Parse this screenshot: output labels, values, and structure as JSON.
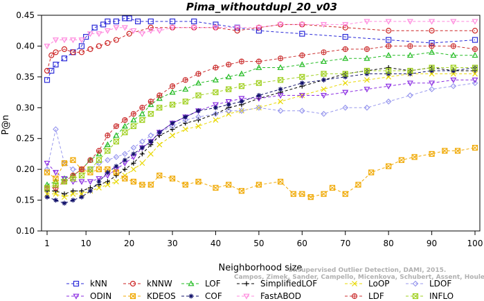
{
  "chart_data": {
    "type": "line",
    "title": "Pima_withoutdupl_20_v03",
    "xlabel": "Neighborhood size",
    "ylabel": "P@n",
    "xlim": [
      1,
      100
    ],
    "ylim": [
      0.1,
      0.45
    ],
    "xticks": [
      1,
      10,
      20,
      30,
      40,
      50,
      60,
      70,
      80,
      90,
      100
    ],
    "yticks": [
      0.1,
      0.15,
      0.2,
      0.25,
      0.3,
      0.35,
      0.4,
      0.45
    ],
    "ytick_labels": [
      "0.10",
      "0.15",
      "0.20",
      "0.25",
      "0.30",
      "0.35",
      "0.40",
      "0.45"
    ],
    "grid": false,
    "legend_position": "bottom",
    "series": [
      {
        "name": "kNN",
        "color": "#2a2ad8",
        "marker": "square",
        "dash": "4,3",
        "x": [
          1,
          2,
          3,
          5,
          7,
          9,
          10,
          12,
          14,
          15,
          17,
          19,
          20,
          22,
          25,
          30,
          35,
          40,
          45,
          50,
          60,
          70,
          80,
          90,
          100
        ],
        "y": [
          0.345,
          0.36,
          0.37,
          0.38,
          0.39,
          0.4,
          0.415,
          0.43,
          0.435,
          0.44,
          0.44,
          0.445,
          0.445,
          0.44,
          0.44,
          0.44,
          0.44,
          0.435,
          0.43,
          0.425,
          0.42,
          0.415,
          0.41,
          0.405,
          0.41
        ]
      },
      {
        "name": "kNNW",
        "color": "#cc2222",
        "marker": "circle",
        "dash": "4,3",
        "x": [
          1,
          2,
          3,
          5,
          7,
          9,
          11,
          13,
          15,
          17,
          20,
          25,
          30,
          35,
          40,
          45,
          50,
          55,
          60,
          70,
          80,
          90,
          100
        ],
        "y": [
          0.36,
          0.385,
          0.39,
          0.395,
          0.39,
          0.39,
          0.395,
          0.4,
          0.405,
          0.41,
          0.42,
          0.43,
          0.43,
          0.43,
          0.43,
          0.425,
          0.43,
          0.435,
          0.435,
          0.43,
          0.425,
          0.425,
          0.425
        ]
      },
      {
        "name": "LOF",
        "color": "#22bb22",
        "marker": "triangle-up",
        "dash": "4,3",
        "x": [
          1,
          3,
          5,
          7,
          9,
          11,
          13,
          15,
          17,
          19,
          21,
          23,
          25,
          27,
          30,
          33,
          36,
          40,
          43,
          46,
          50,
          55,
          60,
          65,
          70,
          75,
          80,
          85,
          90,
          95,
          100
        ],
        "y": [
          0.175,
          0.18,
          0.185,
          0.19,
          0.2,
          0.215,
          0.225,
          0.24,
          0.255,
          0.27,
          0.28,
          0.29,
          0.305,
          0.315,
          0.325,
          0.33,
          0.34,
          0.345,
          0.35,
          0.355,
          0.365,
          0.365,
          0.37,
          0.375,
          0.38,
          0.38,
          0.385,
          0.385,
          0.39,
          0.385,
          0.385
        ]
      },
      {
        "name": "SimplifiedLOF",
        "color": "#000000",
        "marker": "plus",
        "dash": "4,3",
        "x": [
          1,
          3,
          5,
          7,
          9,
          11,
          13,
          15,
          17,
          19,
          21,
          23,
          25,
          27,
          30,
          33,
          36,
          40,
          43,
          46,
          50,
          55,
          60,
          65,
          70,
          75,
          80,
          85,
          90,
          95,
          100
        ],
        "y": [
          0.165,
          0.165,
          0.16,
          0.165,
          0.165,
          0.17,
          0.175,
          0.18,
          0.19,
          0.2,
          0.21,
          0.225,
          0.24,
          0.255,
          0.265,
          0.275,
          0.28,
          0.29,
          0.3,
          0.305,
          0.315,
          0.325,
          0.335,
          0.345,
          0.355,
          0.36,
          0.365,
          0.36,
          0.365,
          0.36,
          0.36
        ]
      },
      {
        "name": "LoOP",
        "color": "#e8d800",
        "marker": "x",
        "dash": "4,3",
        "x": [
          1,
          3,
          5,
          7,
          9,
          11,
          13,
          15,
          17,
          19,
          21,
          23,
          25,
          27,
          30,
          33,
          36,
          40,
          43,
          46,
          50,
          55,
          60,
          65,
          70,
          75,
          80,
          85,
          90,
          95,
          100
        ],
        "y": [
          0.16,
          0.16,
          0.155,
          0.16,
          0.16,
          0.165,
          0.17,
          0.175,
          0.18,
          0.19,
          0.2,
          0.21,
          0.225,
          0.24,
          0.255,
          0.265,
          0.27,
          0.28,
          0.29,
          0.295,
          0.3,
          0.31,
          0.32,
          0.33,
          0.34,
          0.345,
          0.35,
          0.355,
          0.355,
          0.355,
          0.355
        ]
      },
      {
        "name": "LDOF",
        "color": "#9999ee",
        "marker": "diamond",
        "dash": "4,3",
        "x": [
          1,
          3,
          5,
          7,
          9,
          11,
          13,
          15,
          17,
          19,
          21,
          23,
          25,
          27,
          30,
          33,
          36,
          40,
          43,
          46,
          50,
          55,
          60,
          65,
          70,
          75,
          80,
          85,
          90,
          95,
          100
        ],
        "y": [
          0.2,
          0.265,
          0.21,
          0.2,
          0.2,
          0.2,
          0.21,
          0.215,
          0.22,
          0.225,
          0.235,
          0.245,
          0.255,
          0.26,
          0.27,
          0.28,
          0.285,
          0.29,
          0.295,
          0.295,
          0.3,
          0.295,
          0.295,
          0.29,
          0.3,
          0.3,
          0.31,
          0.32,
          0.33,
          0.335,
          0.34
        ]
      },
      {
        "name": "ODIN",
        "color": "#8a2be2",
        "marker": "triangle-down",
        "dash": "4,3",
        "x": [
          1,
          3,
          5,
          7,
          9,
          11,
          13,
          15,
          17,
          19,
          21,
          23,
          25,
          27,
          30,
          33,
          36,
          40,
          43,
          46,
          50,
          55,
          60,
          65,
          70,
          75,
          80,
          85,
          90,
          95,
          100
        ],
        "y": [
          0.21,
          0.195,
          0.185,
          0.18,
          0.18,
          0.18,
          0.185,
          0.19,
          0.2,
          0.21,
          0.22,
          0.235,
          0.245,
          0.26,
          0.275,
          0.285,
          0.295,
          0.305,
          0.31,
          0.315,
          0.315,
          0.32,
          0.32,
          0.32,
          0.325,
          0.33,
          0.335,
          0.34,
          0.34,
          0.345,
          0.345
        ]
      },
      {
        "name": "KDEOS",
        "color": "#f0a800",
        "marker": "square-x",
        "dash": "4,3",
        "x": [
          1,
          3,
          5,
          7,
          9,
          11,
          13,
          15,
          17,
          19,
          21,
          23,
          25,
          27,
          30,
          33,
          36,
          40,
          43,
          46,
          50,
          55,
          58,
          60,
          62,
          65,
          67,
          70,
          73,
          76,
          80,
          83,
          86,
          90,
          93,
          96,
          100
        ],
        "y": [
          0.195,
          0.185,
          0.21,
          0.215,
          0.2,
          0.195,
          0.2,
          0.2,
          0.195,
          0.185,
          0.18,
          0.175,
          0.175,
          0.19,
          0.185,
          0.175,
          0.18,
          0.17,
          0.175,
          0.165,
          0.175,
          0.18,
          0.16,
          0.16,
          0.155,
          0.16,
          0.17,
          0.16,
          0.175,
          0.195,
          0.205,
          0.215,
          0.22,
          0.225,
          0.23,
          0.23,
          0.235
        ]
      },
      {
        "name": "COF",
        "color": "#10106a",
        "marker": "asterisk",
        "dash": "4,3",
        "x": [
          1,
          3,
          5,
          7,
          9,
          11,
          13,
          15,
          17,
          19,
          21,
          23,
          25,
          27,
          30,
          33,
          36,
          40,
          43,
          46,
          50,
          55,
          60,
          65,
          70,
          75,
          80,
          85,
          90,
          95,
          100
        ],
        "y": [
          0.155,
          0.15,
          0.145,
          0.15,
          0.155,
          0.165,
          0.18,
          0.195,
          0.205,
          0.215,
          0.225,
          0.235,
          0.245,
          0.26,
          0.275,
          0.285,
          0.295,
          0.3,
          0.305,
          0.31,
          0.32,
          0.33,
          0.34,
          0.345,
          0.35,
          0.355,
          0.355,
          0.355,
          0.36,
          0.36,
          0.365
        ]
      },
      {
        "name": "FastABOD",
        "color": "#ff88dd",
        "marker": "triangle-down",
        "dash": "4,3",
        "x": [
          1,
          3,
          5,
          7,
          9,
          11,
          13,
          15,
          17,
          19,
          21,
          23,
          25,
          27,
          30,
          35,
          40,
          45,
          50,
          55,
          60,
          65,
          70,
          75,
          80,
          85,
          90,
          95,
          100
        ],
        "y": [
          0.4,
          0.41,
          0.41,
          0.41,
          0.41,
          0.42,
          0.42,
          0.425,
          0.43,
          0.43,
          0.425,
          0.42,
          0.425,
          0.425,
          0.43,
          0.43,
          0.43,
          0.43,
          0.43,
          0.435,
          0.435,
          0.435,
          0.435,
          0.44,
          0.44,
          0.44,
          0.44,
          0.44,
          0.44
        ]
      },
      {
        "name": "LDF",
        "color": "#cc3333",
        "marker": "circle-plus",
        "dash": "4,3",
        "x": [
          1,
          3,
          5,
          7,
          9,
          11,
          13,
          15,
          17,
          19,
          21,
          23,
          25,
          27,
          30,
          33,
          36,
          40,
          43,
          46,
          50,
          55,
          60,
          65,
          70,
          75,
          80,
          85,
          90,
          95,
          100
        ],
        "y": [
          0.17,
          0.17,
          0.18,
          0.19,
          0.2,
          0.215,
          0.23,
          0.255,
          0.27,
          0.28,
          0.29,
          0.3,
          0.31,
          0.32,
          0.335,
          0.345,
          0.355,
          0.365,
          0.37,
          0.375,
          0.375,
          0.38,
          0.385,
          0.39,
          0.395,
          0.395,
          0.4,
          0.4,
          0.4,
          0.4,
          0.395
        ]
      },
      {
        "name": "INFLO",
        "color": "#a0d020",
        "marker": "square-x",
        "dash": "4,3",
        "x": [
          1,
          3,
          5,
          7,
          9,
          11,
          13,
          15,
          17,
          19,
          21,
          23,
          25,
          27,
          30,
          33,
          36,
          40,
          43,
          46,
          50,
          55,
          60,
          65,
          70,
          75,
          80,
          85,
          90,
          95,
          100
        ],
        "y": [
          0.17,
          0.175,
          0.18,
          0.185,
          0.19,
          0.2,
          0.215,
          0.23,
          0.245,
          0.26,
          0.27,
          0.28,
          0.29,
          0.3,
          0.305,
          0.31,
          0.32,
          0.325,
          0.33,
          0.335,
          0.34,
          0.345,
          0.35,
          0.355,
          0.355,
          0.36,
          0.36,
          0.36,
          0.365,
          0.365,
          0.365
        ]
      }
    ],
    "legend": {
      "rows": [
        [
          "kNN",
          "kNNW",
          "LOF",
          "SimplifiedLOF",
          "LoOP",
          "LDOF"
        ],
        [
          "ODIN",
          "KDEOS",
          "COF",
          "FastABOD",
          "LDF",
          "INFLO"
        ]
      ]
    },
    "watermark": {
      "line1": "Unsupervised Outlier Detection, DAMI, 2015.",
      "line2": "Campos, Zimek, Sander, Campello, Micenkova, Schubert, Assent, Houle"
    }
  }
}
